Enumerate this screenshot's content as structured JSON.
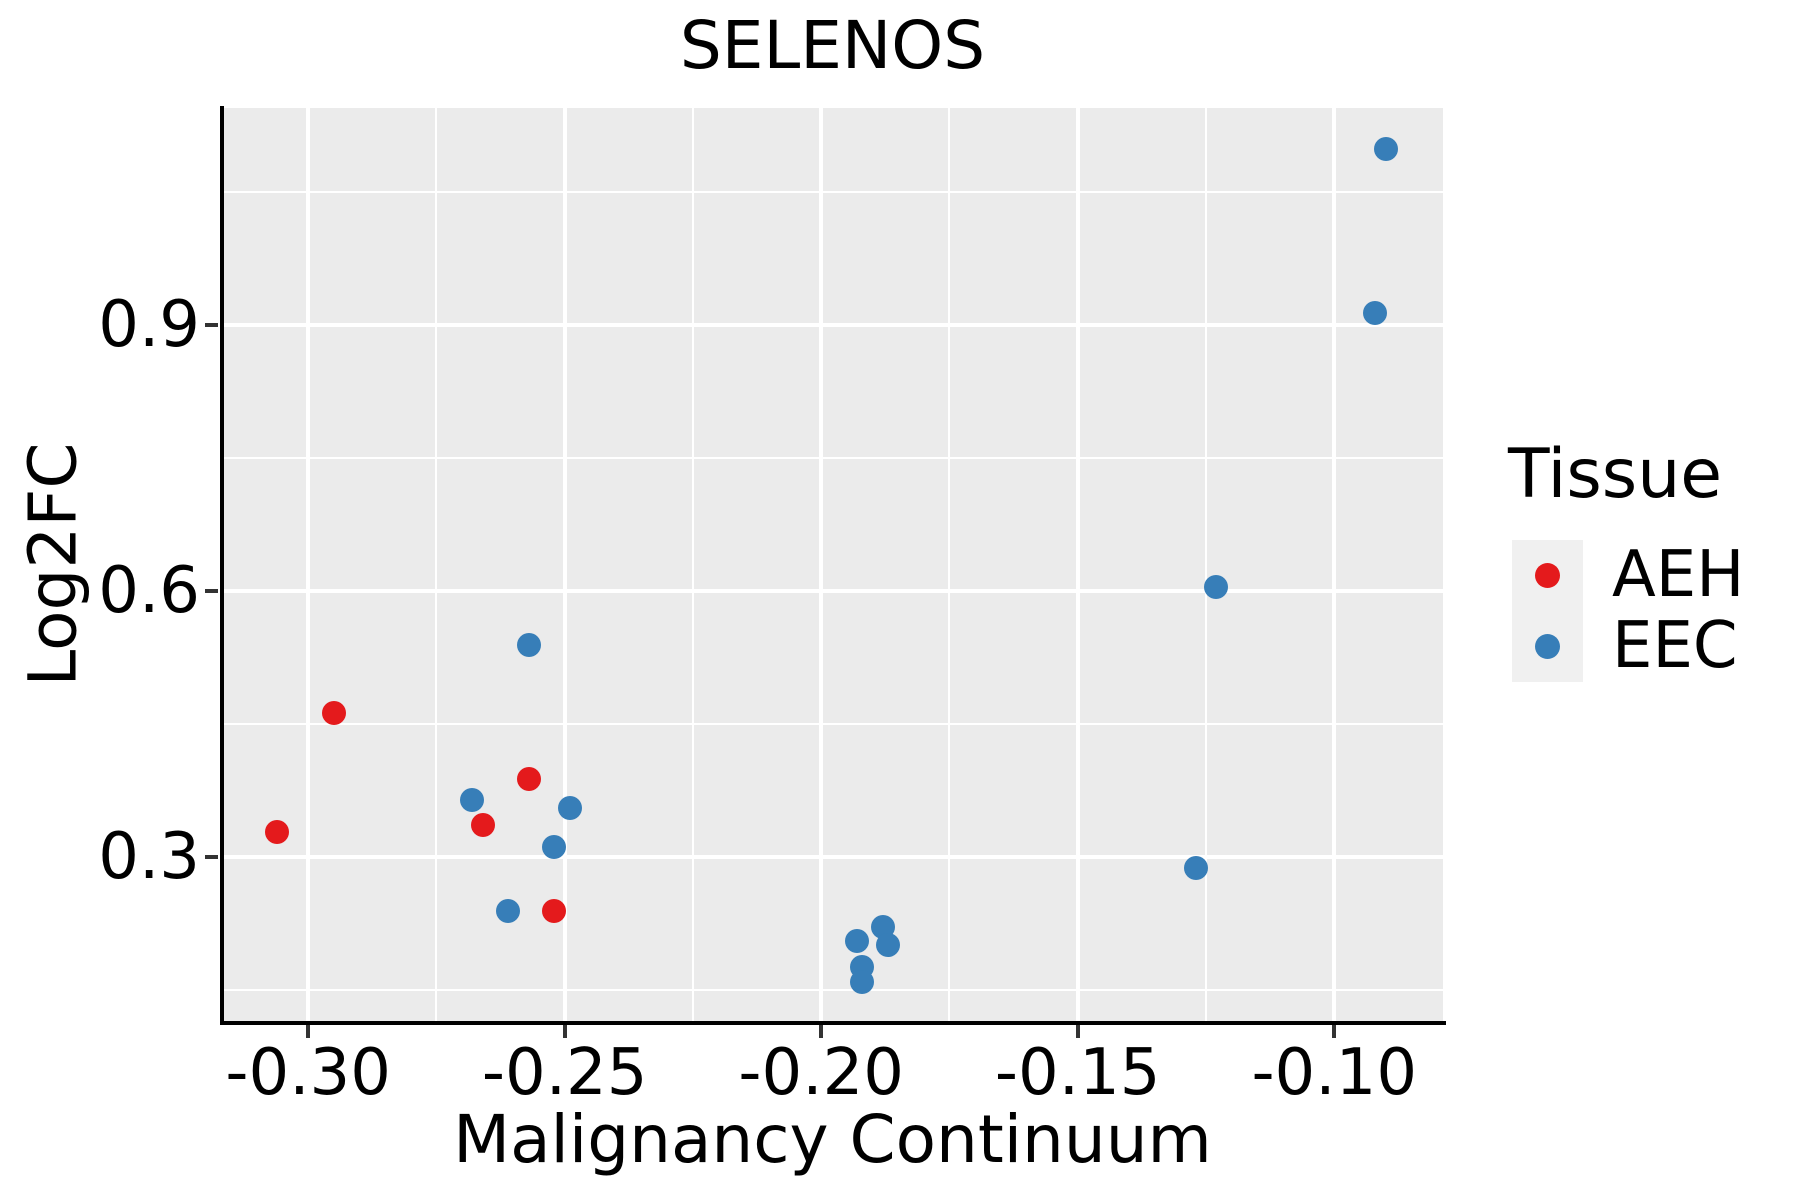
{
  "title": "SELENOS",
  "x_axis": {
    "label": "Malignancy Continuum",
    "tick_labels": [
      "-0.30",
      "-0.25",
      "-0.20",
      "-0.15",
      "-0.10"
    ],
    "ticks": [
      -0.3,
      -0.25,
      -0.2,
      -0.15,
      -0.1
    ],
    "minor_ticks": [
      -0.275,
      -0.225,
      -0.175,
      -0.125
    ]
  },
  "y_axis": {
    "label": "Log2FC",
    "tick_labels": [
      "0.3",
      "0.6",
      "0.9"
    ],
    "ticks": [
      0.3,
      0.6,
      0.9
    ],
    "minor_ticks": [
      0.15,
      0.45,
      0.75,
      1.05
    ]
  },
  "legend": {
    "title": "Tissue",
    "entries": [
      {
        "label": "AEH",
        "color": "#E41A1C"
      },
      {
        "label": "EEC",
        "color": "#377EB8"
      }
    ]
  },
  "colors": {
    "panel_background": "#EBEBEB",
    "gridline": "#FFFFFF",
    "axis_line": "#000000",
    "tick_mark": "#333333",
    "legend_key_background": "#F0F0F0",
    "aeh": "#E41A1C",
    "eec": "#377EB8"
  },
  "chart_data": {
    "type": "scatter",
    "title": "SELENOS",
    "xlabel": "Malignancy Continuum",
    "ylabel": "Log2FC",
    "legend_title": "Tissue",
    "legend_position": "right",
    "grid": "major+minor, white on gray panel",
    "xlim": [
      -0.3168,
      -0.0788
    ],
    "ylim": [
      0.115,
      1.145
    ],
    "x_ticks": [
      -0.3,
      -0.25,
      -0.2,
      -0.15,
      -0.1
    ],
    "y_ticks": [
      0.3,
      0.6,
      0.9
    ],
    "series": [
      {
        "name": "AEH",
        "color": "#E41A1C",
        "points": [
          [
            -0.306,
            0.328
          ],
          [
            -0.295,
            0.462
          ],
          [
            -0.266,
            0.336
          ],
          [
            -0.257,
            0.388
          ],
          [
            -0.252,
            0.239
          ]
        ]
      },
      {
        "name": "EEC",
        "color": "#377EB8",
        "points": [
          [
            -0.268,
            0.364
          ],
          [
            -0.261,
            0.239
          ],
          [
            -0.257,
            0.539
          ],
          [
            -0.252,
            0.311
          ],
          [
            -0.249,
            0.355
          ],
          [
            -0.193,
            0.205
          ],
          [
            -0.192,
            0.176
          ],
          [
            -0.192,
            0.159
          ],
          [
            -0.188,
            0.221
          ],
          [
            -0.187,
            0.201
          ],
          [
            -0.127,
            0.288
          ],
          [
            -0.123,
            0.605
          ],
          [
            -0.092,
            0.914
          ],
          [
            -0.09,
            1.099
          ]
        ]
      }
    ]
  }
}
